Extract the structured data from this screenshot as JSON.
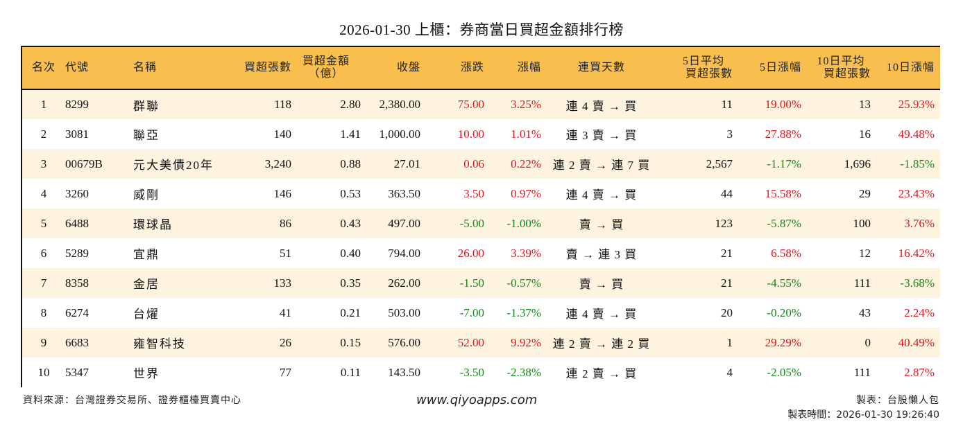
{
  "title": "2026-01-30 上櫃：券商當日買超金額排行榜",
  "colors": {
    "header_bg": "#f8bf4f",
    "row_odd_bg": "#fdf3df",
    "row_even_bg": "#ffffff",
    "up": "#e0141e",
    "down": "#118a17"
  },
  "columns": {
    "rank": "名次",
    "code": "代號",
    "name": "名稱",
    "net_buy_lots": "買超張數",
    "net_buy_amount_l1": "買超金額",
    "net_buy_amount_l2": "（億）",
    "close": "收盤",
    "change": "漲跌",
    "change_pct": "漲幅",
    "streak": "連買天數",
    "avg5_l1": "5日平均",
    "avg5_l2": "買超張數",
    "pct5": "5日漲幅",
    "avg10_l1": "10日平均",
    "avg10_l2": "買超張數",
    "pct10": "10日漲幅"
  },
  "rows": [
    {
      "rank": "1",
      "code": "8299",
      "name": "群聯",
      "net_buy_lots": "118",
      "amount": "2.80",
      "close": "2,380.00",
      "change": "75.00",
      "change_dir": "up",
      "change_pct": "3.25%",
      "pct_dir": "up",
      "streak": "連 4 賣 → 買",
      "avg5": "11",
      "pct5": "19.00%",
      "pct5_dir": "up",
      "avg10": "13",
      "pct10": "25.93%",
      "pct10_dir": "up"
    },
    {
      "rank": "2",
      "code": "3081",
      "name": "聯亞",
      "net_buy_lots": "140",
      "amount": "1.41",
      "close": "1,000.00",
      "change": "10.00",
      "change_dir": "up",
      "change_pct": "1.01%",
      "pct_dir": "up",
      "streak": "連 3 賣 → 買",
      "avg5": "3",
      "pct5": "27.88%",
      "pct5_dir": "up",
      "avg10": "16",
      "pct10": "49.48%",
      "pct10_dir": "up"
    },
    {
      "rank": "3",
      "code": "00679B",
      "name": "元大美債20年",
      "net_buy_lots": "3,240",
      "amount": "0.88",
      "close": "27.01",
      "change": "0.06",
      "change_dir": "up",
      "change_pct": "0.22%",
      "pct_dir": "up",
      "streak": "連 2 賣 → 連 7 買",
      "avg5": "2,567",
      "pct5": "-1.17%",
      "pct5_dir": "down",
      "avg10": "1,696",
      "pct10": "-1.85%",
      "pct10_dir": "down"
    },
    {
      "rank": "4",
      "code": "3260",
      "name": "威剛",
      "net_buy_lots": "146",
      "amount": "0.53",
      "close": "363.50",
      "change": "3.50",
      "change_dir": "up",
      "change_pct": "0.97%",
      "pct_dir": "up",
      "streak": "連 4 賣 → 買",
      "avg5": "44",
      "pct5": "15.58%",
      "pct5_dir": "up",
      "avg10": "29",
      "pct10": "23.43%",
      "pct10_dir": "up"
    },
    {
      "rank": "5",
      "code": "6488",
      "name": "環球晶",
      "net_buy_lots": "86",
      "amount": "0.43",
      "close": "497.00",
      "change": "-5.00",
      "change_dir": "down",
      "change_pct": "-1.00%",
      "pct_dir": "down",
      "streak": "賣 → 買",
      "avg5": "123",
      "pct5": "-5.87%",
      "pct5_dir": "down",
      "avg10": "100",
      "pct10": "3.76%",
      "pct10_dir": "up"
    },
    {
      "rank": "6",
      "code": "5289",
      "name": "宜鼎",
      "net_buy_lots": "51",
      "amount": "0.40",
      "close": "794.00",
      "change": "26.00",
      "change_dir": "up",
      "change_pct": "3.39%",
      "pct_dir": "up",
      "streak": "賣 → 連 3 買",
      "avg5": "21",
      "pct5": "6.58%",
      "pct5_dir": "up",
      "avg10": "12",
      "pct10": "16.42%",
      "pct10_dir": "up"
    },
    {
      "rank": "7",
      "code": "8358",
      "name": "金居",
      "net_buy_lots": "133",
      "amount": "0.35",
      "close": "262.00",
      "change": "-1.50",
      "change_dir": "down",
      "change_pct": "-0.57%",
      "pct_dir": "down",
      "streak": "賣 → 買",
      "avg5": "21",
      "pct5": "-4.55%",
      "pct5_dir": "down",
      "avg10": "111",
      "pct10": "-3.68%",
      "pct10_dir": "down"
    },
    {
      "rank": "8",
      "code": "6274",
      "name": "台燿",
      "net_buy_lots": "41",
      "amount": "0.21",
      "close": "503.00",
      "change": "-7.00",
      "change_dir": "down",
      "change_pct": "-1.37%",
      "pct_dir": "down",
      "streak": "連 4 賣 → 買",
      "avg5": "20",
      "pct5": "-0.20%",
      "pct5_dir": "down",
      "avg10": "43",
      "pct10": "2.24%",
      "pct10_dir": "up"
    },
    {
      "rank": "9",
      "code": "6683",
      "name": "雍智科技",
      "net_buy_lots": "26",
      "amount": "0.15",
      "close": "576.00",
      "change": "52.00",
      "change_dir": "up",
      "change_pct": "9.92%",
      "pct_dir": "up",
      "streak": "連 2 賣 → 連 2 買",
      "avg5": "1",
      "pct5": "29.29%",
      "pct5_dir": "up",
      "avg10": "0",
      "pct10": "40.49%",
      "pct10_dir": "up"
    },
    {
      "rank": "10",
      "code": "5347",
      "name": "世界",
      "net_buy_lots": "77",
      "amount": "0.11",
      "close": "143.50",
      "change": "-3.50",
      "change_dir": "down",
      "change_pct": "-2.38%",
      "pct_dir": "down",
      "streak": "連 2 賣 → 買",
      "avg5": "4",
      "pct5": "-2.05%",
      "pct5_dir": "down",
      "avg10": "111",
      "pct10": "2.87%",
      "pct10_dir": "up"
    }
  ],
  "footer": {
    "source": "資料來源：台灣證券交易所、證券櫃檯買賣中心",
    "website": "www.qiyoapps.com",
    "author": "製表：台股懶人包",
    "generated_at": "製表時間：2026-01-30 19:26:40"
  }
}
